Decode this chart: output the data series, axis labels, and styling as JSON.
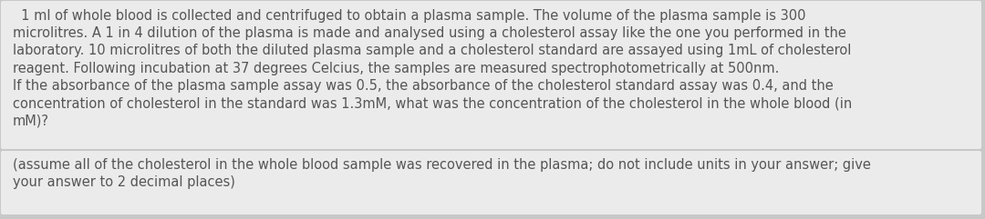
{
  "bg_color": "#c8c8c8",
  "box1_color": "#ebebeb",
  "box2_color": "#ebebeb",
  "text_color": "#555555",
  "paragraph1": "  1 ml of whole blood is collected and centrifuged to obtain a plasma sample. The volume of the plasma sample is 300\nmicrolitres. A 1 in 4 dilution of the plasma is made and analysed using a cholesterol assay like the one you performed in the\nlaboratory. 10 microlitres of both the diluted plasma sample and a cholesterol standard are assayed using 1mL of cholesterol\nreagent. Following incubation at 37 degrees Celcius, the samples are measured spectrophotometrically at 500nm.\nIf the absorbance of the plasma sample assay was 0.5, the absorbance of the cholesterol standard assay was 0.4, and the\nconcentration of cholesterol in the standard was 1.3mM, what was the concentration of the cholesterol in the whole blood (in\nmM)?",
  "paragraph2": "(assume all of the cholesterol in the whole blood sample was recovered in the plasma; do not include units in your answer; give\nyour answer to 2 decimal places)",
  "fontsize": 10.5,
  "figsize": [
    10.8,
    2.41
  ],
  "dpi": 100
}
